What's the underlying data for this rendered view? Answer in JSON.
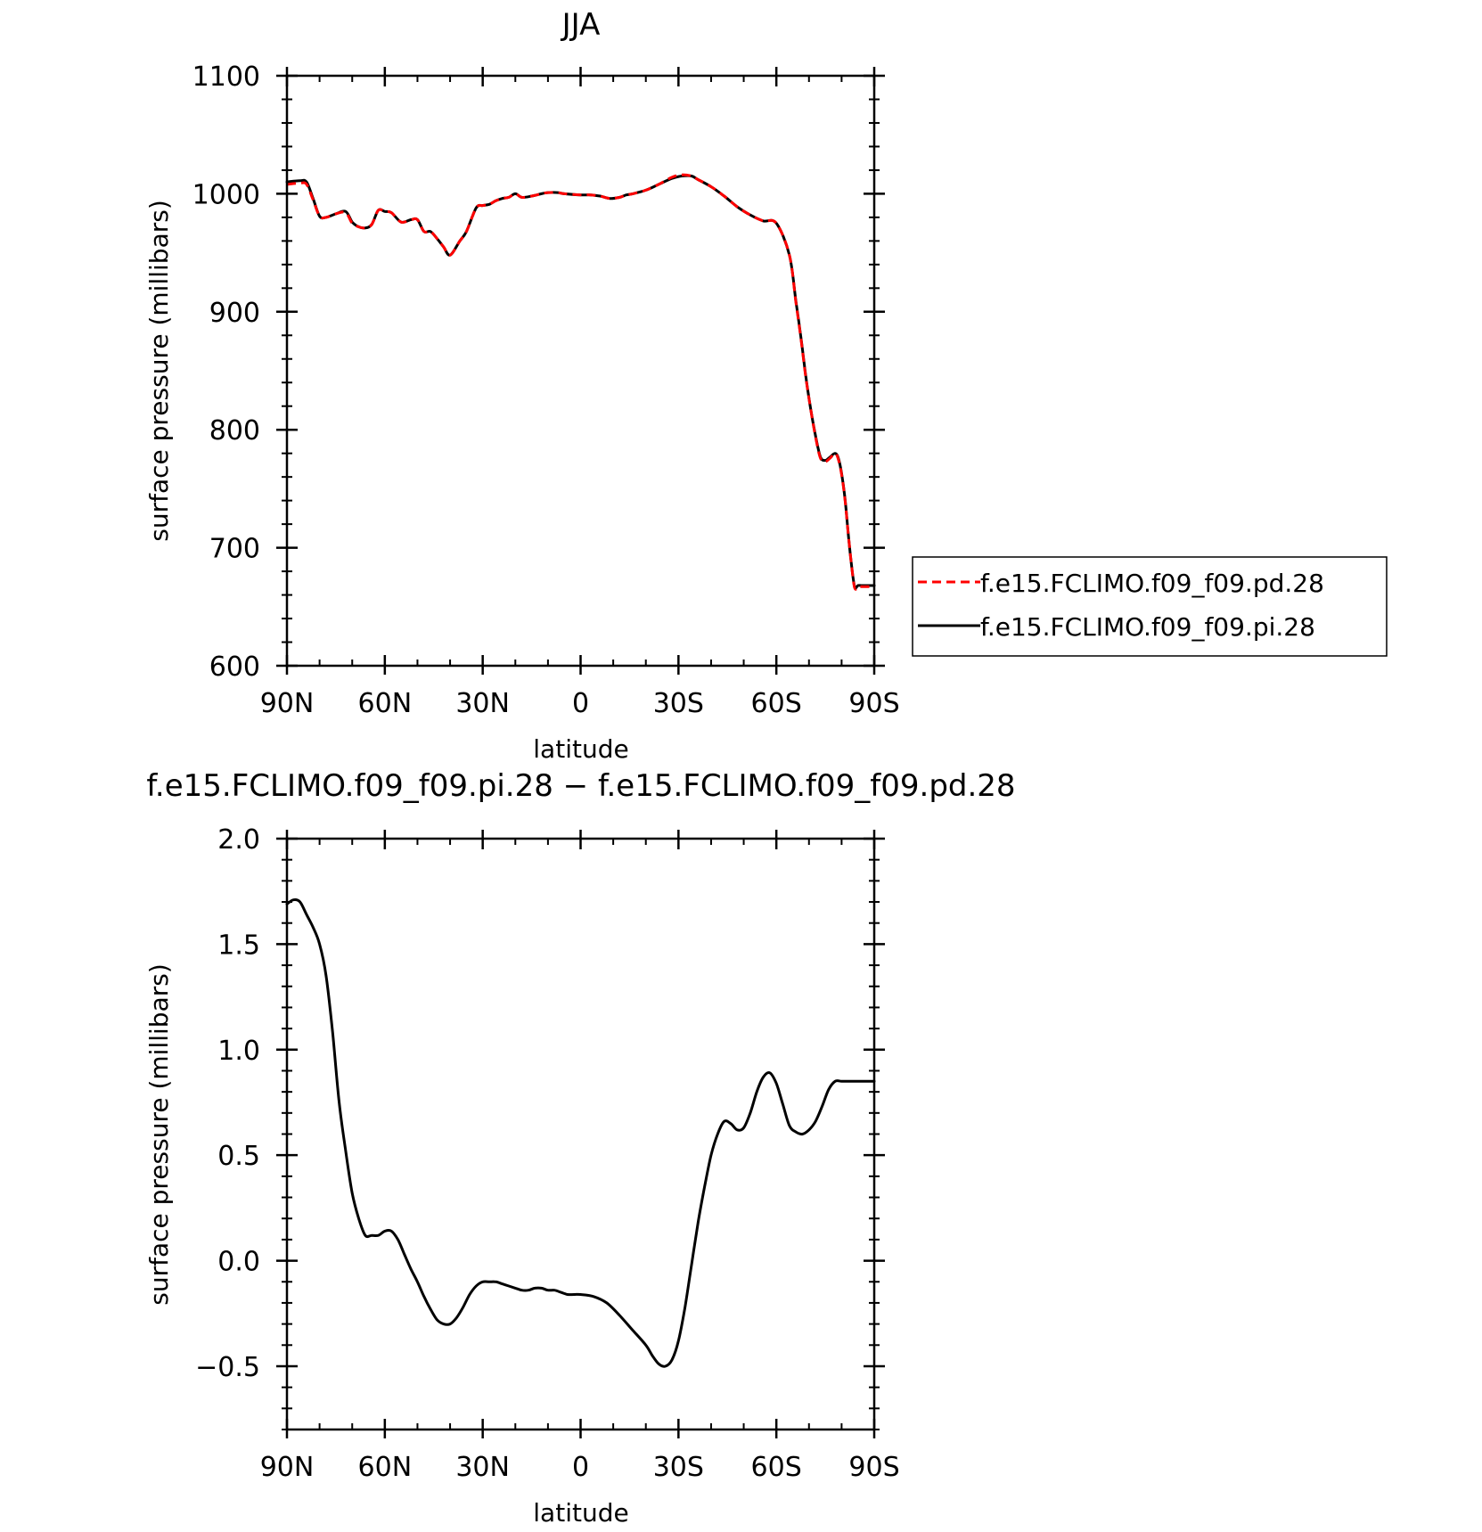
{
  "chart_data": [
    {
      "type": "line",
      "title": "JJA",
      "xlabel": "latitude",
      "ylabel": "surface pressure (millibars)",
      "xlim": [
        90,
        -90
      ],
      "ylim": [
        600,
        1100
      ],
      "xticks": [
        {
          "value": 90,
          "label": "90N"
        },
        {
          "value": 60,
          "label": "60N"
        },
        {
          "value": 30,
          "label": "30N"
        },
        {
          "value": 0,
          "label": "0"
        },
        {
          "value": -30,
          "label": "30S"
        },
        {
          "value": -60,
          "label": "60S"
        },
        {
          "value": -90,
          "label": "90S"
        }
      ],
      "yticks": [
        {
          "value": 600,
          "label": "600"
        },
        {
          "value": 700,
          "label": "700"
        },
        {
          "value": 800,
          "label": "800"
        },
        {
          "value": 900,
          "label": "900"
        },
        {
          "value": 1000,
          "label": "1000"
        },
        {
          "value": 1100,
          "label": "1100"
        }
      ],
      "legend": {
        "placement": "right",
        "entries": [
          {
            "label": "f.e15.FCLIMO.f09_f09.pd.28",
            "color": "#ff0000",
            "dash": "dashed"
          },
          {
            "label": "f.e15.FCLIMO.f09_f09.pi.28",
            "color": "#000000",
            "dash": "solid"
          }
        ]
      },
      "x": [
        90,
        86,
        84,
        82,
        80,
        78,
        75,
        72,
        70,
        68,
        66,
        64,
        62,
        60,
        58,
        55,
        52,
        50,
        48,
        46,
        44,
        42,
        40,
        37,
        35,
        32,
        30,
        28,
        26,
        24,
        22,
        20,
        18,
        15,
        12,
        10,
        7,
        5,
        0,
        -3,
        -6,
        -9,
        -12,
        -14,
        -16,
        -20,
        -24,
        -28,
        -31,
        -34,
        -36,
        -40,
        -44,
        -48,
        -52,
        -56,
        -60,
        -64,
        -66,
        -67.5,
        -69,
        -70.5,
        -72,
        -73.5,
        -75,
        -76.5,
        -78,
        -79,
        -80,
        -81,
        -82,
        -83,
        -84,
        -85,
        -86,
        -87,
        -88,
        -89,
        -90
      ],
      "series": [
        {
          "name": "f.e15.FCLIMO.f09_f09.pd.28",
          "color": "#ff0000",
          "dash": "dashed",
          "values": [
            1008,
            1009,
            1008,
            995,
            981,
            980,
            983,
            984,
            975,
            972,
            971,
            974,
            986,
            985,
            984,
            976,
            978,
            978,
            968,
            968,
            962,
            955,
            948,
            960,
            968,
            988,
            990,
            991,
            994,
            996,
            997,
            1000,
            997,
            998,
            1000,
            1001,
            1001,
            1000,
            999,
            999,
            998,
            996,
            997,
            999,
            1000,
            1003,
            1008,
            1014,
            1016,
            1015,
            1012,
            1006,
            998,
            989,
            982,
            977,
            975,
            948,
            908,
            878,
            845,
            818,
            794,
            776,
            773,
            776,
            780,
            775,
            762,
            742,
            713,
            686,
            666,
            667,
            667,
            667,
            667,
            667,
            667
          ]
        },
        {
          "name": "f.e15.FCLIMO.f09_f09.pi.28",
          "color": "#000000",
          "dash": "solid",
          "values": [
            1010,
            1011,
            1010,
            996,
            981,
            980,
            983,
            985,
            976,
            972,
            971,
            974,
            986,
            985,
            984,
            976,
            978,
            978,
            968,
            968,
            962,
            955,
            948,
            960,
            968,
            988,
            990,
            991,
            994,
            996,
            997,
            1000,
            997,
            998,
            1000,
            1001,
            1001,
            1000,
            999,
            999,
            998,
            996,
            997,
            999,
            1000,
            1003,
            1008,
            1013,
            1015,
            1015,
            1012,
            1006,
            998,
            989,
            982,
            977,
            975,
            948,
            909,
            879,
            846,
            818,
            795,
            777,
            774,
            777,
            780,
            776,
            763,
            743,
            713,
            686,
            667,
            668,
            668,
            668,
            668,
            668,
            668
          ]
        }
      ]
    },
    {
      "type": "line",
      "title": "f.e15.FCLIMO.f09_f09.pi.28 − f.e15.FCLIMO.f09_f09.pd.28",
      "xlabel": "latitude",
      "ylabel": "surface pressure (millibars)",
      "xlim": [
        90,
        -90
      ],
      "ylim": [
        -0.8,
        2.0
      ],
      "xticks": [
        {
          "value": 90,
          "label": "90N"
        },
        {
          "value": 60,
          "label": "60N"
        },
        {
          "value": 30,
          "label": "30N"
        },
        {
          "value": 0,
          "label": "0"
        },
        {
          "value": -30,
          "label": "30S"
        },
        {
          "value": -60,
          "label": "60S"
        },
        {
          "value": -90,
          "label": "90S"
        }
      ],
      "yticks": [
        {
          "value": -0.5,
          "label": "−0.5"
        },
        {
          "value": 0.0,
          "label": "0.0"
        },
        {
          "value": 0.5,
          "label": "0.5"
        },
        {
          "value": 1.0,
          "label": "1.0"
        },
        {
          "value": 1.5,
          "label": "1.5"
        },
        {
          "value": 2.0,
          "label": "2.0"
        }
      ],
      "x": [
        90,
        88,
        86,
        84,
        82,
        80,
        78,
        76,
        74,
        72,
        70,
        68,
        66,
        64,
        62,
        60,
        58,
        56,
        54,
        52,
        50,
        48,
        46,
        44,
        42,
        40,
        38,
        36,
        34,
        32,
        30,
        28,
        26,
        24,
        22,
        20,
        18,
        16,
        14,
        12,
        10,
        8,
        6,
        4,
        2,
        0,
        -4,
        -8,
        -12,
        -16,
        -20,
        -22,
        -24,
        -26,
        -28,
        -30,
        -32,
        -34,
        -36,
        -38,
        -40,
        -42,
        -44,
        -46,
        -48,
        -50,
        -52,
        -54,
        -56,
        -58,
        -60,
        -62,
        -64,
        -66,
        -68,
        -70,
        -72,
        -74,
        -76,
        -78,
        -80,
        -82,
        -84,
        -86,
        -88,
        -90
      ],
      "series": [
        {
          "name": "",
          "color": "#000000",
          "dash": "solid",
          "values": [
            1.69,
            1.71,
            1.7,
            1.64,
            1.58,
            1.5,
            1.35,
            1.08,
            0.75,
            0.52,
            0.32,
            0.2,
            0.12,
            0.12,
            0.12,
            0.14,
            0.14,
            0.1,
            0.03,
            -0.04,
            -0.1,
            -0.17,
            -0.23,
            -0.28,
            -0.3,
            -0.3,
            -0.27,
            -0.22,
            -0.16,
            -0.12,
            -0.1,
            -0.1,
            -0.1,
            -0.11,
            -0.12,
            -0.13,
            -0.14,
            -0.14,
            -0.13,
            -0.13,
            -0.14,
            -0.14,
            -0.15,
            -0.16,
            -0.16,
            -0.16,
            -0.17,
            -0.2,
            -0.26,
            -0.33,
            -0.4,
            -0.45,
            -0.49,
            -0.5,
            -0.47,
            -0.38,
            -0.22,
            -0.02,
            0.18,
            0.35,
            0.5,
            0.6,
            0.66,
            0.65,
            0.62,
            0.63,
            0.7,
            0.8,
            0.87,
            0.89,
            0.84,
            0.74,
            0.64,
            0.61,
            0.6,
            0.62,
            0.66,
            0.73,
            0.81,
            0.85,
            0.85,
            0.85,
            0.85,
            0.85,
            0.85,
            0.85
          ]
        }
      ]
    }
  ]
}
